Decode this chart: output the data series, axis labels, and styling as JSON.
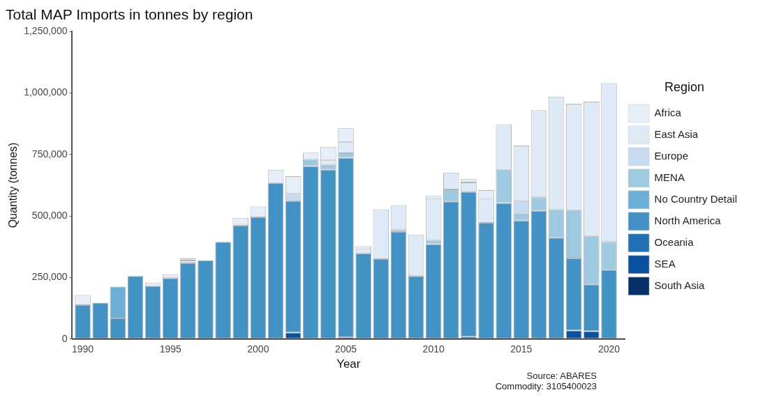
{
  "chart_data": {
    "type": "bar",
    "title": "Total MAP Imports in tonnes by region",
    "xlabel": "Year",
    "ylabel": "Quantity (tonnes)",
    "legend_title": "Region",
    "legend": "right",
    "stacked": true,
    "grid": false,
    "x": [
      1990,
      1991,
      1992,
      1993,
      1994,
      1995,
      1996,
      1997,
      1998,
      1999,
      2000,
      2001,
      2002,
      2003,
      2004,
      2005,
      2006,
      2007,
      2008,
      2009,
      2010,
      2011,
      2012,
      2013,
      2014,
      2015,
      2016,
      2017,
      2018,
      2019,
      2020
    ],
    "xlim": [
      1989.4,
      2020.9
    ],
    "xticks": [
      1990,
      1995,
      2000,
      2005,
      2010,
      2015,
      2020
    ],
    "ylim": [
      0,
      1250000
    ],
    "yticks": [
      {
        "value": 0,
        "label": "0"
      },
      {
        "value": 250000,
        "label": "250,000"
      },
      {
        "value": 500000,
        "label": "500,000"
      },
      {
        "value": 750000,
        "label": "750,000"
      },
      {
        "value": 1000000,
        "label": "1,000,000"
      },
      {
        "value": 1250000,
        "label": "1,250,000"
      }
    ],
    "series": [
      {
        "name": "South Asia",
        "color": "#08306b",
        "values": [
          null,
          null,
          null,
          null,
          null,
          null,
          null,
          null,
          null,
          null,
          null,
          null,
          null,
          null,
          null,
          null,
          null,
          null,
          null,
          null,
          null,
          null,
          null,
          null,
          null,
          null,
          null,
          null,
          null,
          null,
          null
        ]
      },
      {
        "name": "SEA",
        "color": "#08519c",
        "values": [
          null,
          null,
          null,
          null,
          null,
          null,
          null,
          null,
          null,
          null,
          null,
          null,
          26000,
          null,
          null,
          8000,
          null,
          null,
          null,
          null,
          null,
          null,
          10000,
          null,
          null,
          null,
          null,
          null,
          35000,
          32000,
          null
        ]
      },
      {
        "name": "Oceania",
        "color": "#2171b5",
        "values": [
          null,
          null,
          null,
          null,
          null,
          null,
          null,
          null,
          null,
          null,
          null,
          null,
          null,
          null,
          null,
          null,
          null,
          null,
          null,
          null,
          null,
          null,
          null,
          null,
          null,
          null,
          null,
          null,
          null,
          null,
          null
        ]
      },
      {
        "name": "North America",
        "color": "#4292c6",
        "values": [
          138000,
          147000,
          84000,
          256000,
          216000,
          248000,
          308000,
          320000,
          395000,
          461000,
          495000,
          634000,
          536000,
          703000,
          688000,
          729000,
          348000,
          325000,
          435000,
          256000,
          386000,
          559000,
          589000,
          472000,
          553000,
          481000,
          521000,
          412000,
          293000,
          190000,
          282000
        ]
      },
      {
        "name": "No Country Detail",
        "color": "#6baed6",
        "values": [
          null,
          null,
          129000,
          null,
          null,
          null,
          null,
          null,
          null,
          null,
          null,
          null,
          null,
          null,
          null,
          null,
          null,
          null,
          null,
          null,
          null,
          null,
          null,
          null,
          null,
          null,
          null,
          null,
          null,
          null,
          null
        ]
      },
      {
        "name": "MENA",
        "color": "#9ecae1",
        "values": [
          null,
          null,
          null,
          null,
          null,
          null,
          null,
          null,
          null,
          null,
          null,
          null,
          null,
          28000,
          20000,
          18000,
          null,
          null,
          8000,
          null,
          17000,
          49000,
          null,
          null,
          135000,
          29000,
          55000,
          115000,
          196000,
          198000,
          113000
        ]
      },
      {
        "name": "Europe",
        "color": "#c6dbef",
        "values": [
          null,
          null,
          null,
          null,
          null,
          null,
          null,
          null,
          null,
          null,
          null,
          null,
          28000,
          null,
          null,
          null,
          null,
          null,
          null,
          null,
          null,
          null,
          null,
          null,
          null,
          49000,
          null,
          null,
          null,
          null,
          null
        ]
      },
      {
        "name": "East Asia",
        "color": "#deebf7",
        "values": [
          null,
          null,
          null,
          null,
          null,
          null,
          11000,
          null,
          null,
          null,
          null,
          null,
          null,
          null,
          18000,
          45000,
          18000,
          202000,
          101000,
          167000,
          167000,
          69000,
          37000,
          98000,
          185000,
          227000,
          354000,
          458000,
          432000,
          545000,
          645000
        ]
      },
      {
        "name": "Africa",
        "color": "#e6eff9",
        "values": [
          41000,
          null,
          null,
          null,
          12000,
          14000,
          9000,
          null,
          null,
          32000,
          44000,
          54000,
          72000,
          26000,
          54000,
          58000,
          11000,
          null,
          null,
          null,
          12000,
          null,
          15000,
          35000,
          null,
          null,
          null,
          null,
          null,
          null,
          null
        ]
      }
    ],
    "annotations": [
      "Source: ABARES",
      "Commodity: 3105400023"
    ]
  }
}
